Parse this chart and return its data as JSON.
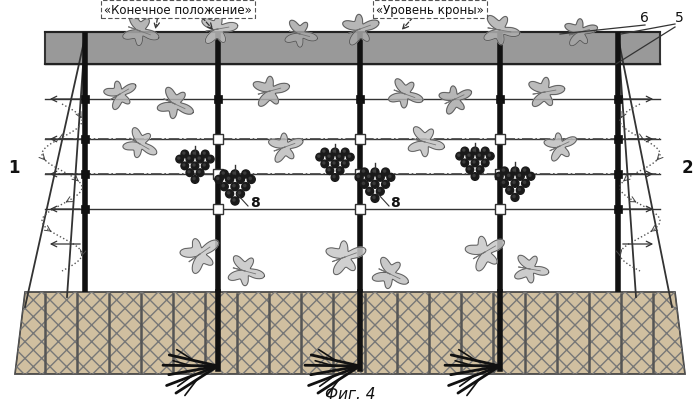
{
  "title": "Фиг. 4",
  "label_konechnoe": "«Конечное положение»",
  "label_uroven": "«Уровень кроны»",
  "label_1": "1",
  "label_2": "2",
  "label_5": "5",
  "label_6": "6",
  "label_8": "8",
  "bg_color": "#ffffff",
  "trunk_color": "#111111",
  "ground_fill": "#ccbbaa",
  "shade_band": "#999999",
  "wire_color": "#333333",
  "post_color": "#111111",
  "leaf_gray": "#aaaaaa",
  "grape_dark": "#1a1a1a",
  "dashed_line": "#444444"
}
